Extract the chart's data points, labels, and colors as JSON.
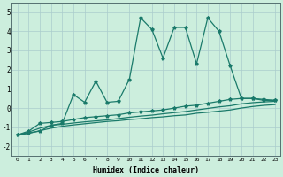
{
  "title": "",
  "xlabel": "Humidex (Indice chaleur)",
  "background_color": "#cceedd",
  "grid_color": "#aacccc",
  "line_color": "#1a7a6a",
  "x_values": [
    0,
    1,
    2,
    3,
    4,
    5,
    6,
    7,
    8,
    9,
    10,
    11,
    12,
    13,
    14,
    15,
    16,
    17,
    18,
    19,
    20,
    21,
    22,
    23
  ],
  "series1": [
    -1.4,
    -1.3,
    -1.2,
    -0.9,
    -0.8,
    0.7,
    0.3,
    1.4,
    0.3,
    0.35,
    1.5,
    4.7,
    4.1,
    2.6,
    4.2,
    4.2,
    2.3,
    4.7,
    4.0,
    2.2,
    0.5,
    0.5,
    0.4,
    0.4
  ],
  "series2": [
    -1.4,
    -1.2,
    -0.8,
    -0.75,
    -0.7,
    -0.6,
    -0.5,
    -0.45,
    -0.4,
    -0.35,
    -0.25,
    -0.2,
    -0.15,
    -0.1,
    0.0,
    0.1,
    0.15,
    0.25,
    0.35,
    0.45,
    0.5,
    0.5,
    0.45,
    0.4
  ],
  "series3": [
    -1.4,
    -1.25,
    -1.05,
    -0.9,
    -0.85,
    -0.78,
    -0.72,
    -0.67,
    -0.62,
    -0.55,
    -0.48,
    -0.42,
    -0.37,
    -0.3,
    -0.24,
    -0.18,
    -0.1,
    -0.02,
    0.06,
    0.12,
    0.22,
    0.28,
    0.32,
    0.35
  ],
  "series4": [
    -1.4,
    -1.32,
    -1.18,
    -1.05,
    -0.95,
    -0.88,
    -0.82,
    -0.76,
    -0.7,
    -0.66,
    -0.6,
    -0.56,
    -0.5,
    -0.46,
    -0.4,
    -0.36,
    -0.27,
    -0.22,
    -0.16,
    -0.1,
    0.0,
    0.08,
    0.14,
    0.18
  ],
  "ylim": [
    -2.5,
    5.5
  ],
  "xlim": [
    -0.5,
    23.5
  ],
  "yticks": [
    -2,
    -1,
    0,
    1,
    2,
    3,
    4,
    5
  ],
  "xticks": [
    0,
    1,
    2,
    3,
    4,
    5,
    6,
    7,
    8,
    9,
    10,
    11,
    12,
    13,
    14,
    15,
    16,
    17,
    18,
    19,
    20,
    21,
    22,
    23
  ]
}
